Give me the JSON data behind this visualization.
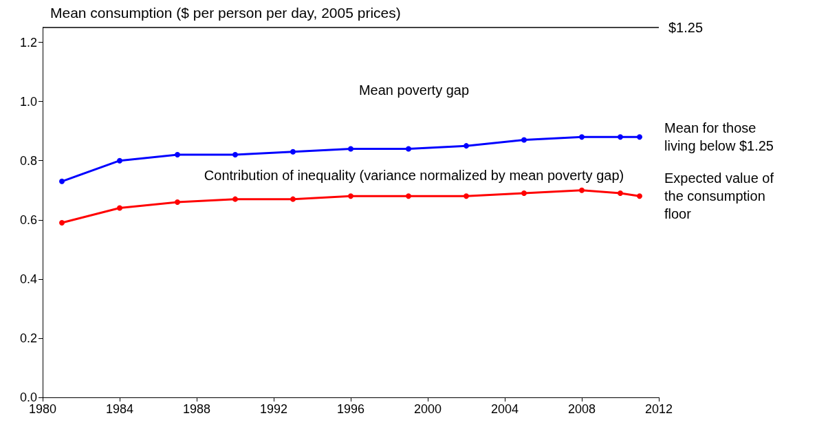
{
  "chart_data": {
    "type": "line",
    "title": "Mean consumption ($ per person per day, 2005 prices)",
    "x": [
      1981,
      1984,
      1987,
      1990,
      1993,
      1996,
      1999,
      2002,
      2005,
      2008,
      2010,
      2011
    ],
    "series": [
      {
        "name": "Mean for those living below $1.25",
        "color": "#0000ff",
        "values": [
          0.73,
          0.8,
          0.82,
          0.82,
          0.83,
          0.84,
          0.84,
          0.85,
          0.87,
          0.88,
          0.88,
          0.88
        ]
      },
      {
        "name": "Expected value of the consumption floor",
        "color": "#ff0000",
        "values": [
          0.59,
          0.64,
          0.66,
          0.67,
          0.67,
          0.68,
          0.68,
          0.68,
          0.69,
          0.7,
          0.69,
          0.68
        ]
      }
    ],
    "xlim": [
      1980,
      2012
    ],
    "xticks": [
      1980,
      1984,
      1988,
      1992,
      1996,
      2000,
      2004,
      2008,
      2012
    ],
    "ylim": [
      0,
      1.25
    ],
    "yticks": [
      {
        "value": 0,
        "label": "0.0"
      },
      0.2,
      0.4,
      0.6,
      0.8,
      {
        "value": 1,
        "label": "1.0"
      },
      1.2
    ],
    "ref_lines": [
      {
        "axis": "y",
        "value": 1.25,
        "label": "$1.25",
        "color": "#000000"
      }
    ],
    "annotations": [
      "Mean poverty gap",
      "Contribution of inequality (variance normalized by mean poverty gap)"
    ],
    "marker": "circle",
    "line_style": "solid",
    "grid": false,
    "legend": false
  }
}
